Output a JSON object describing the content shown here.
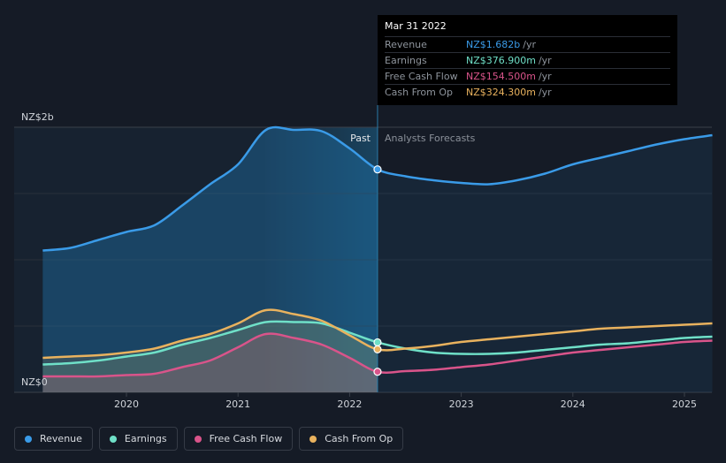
{
  "tooltip": {
    "date": "Mar 31 2022",
    "rows": [
      {
        "label": "Revenue",
        "value": "NZ$1.682b",
        "unit": "/yr",
        "color": "#3a9be8"
      },
      {
        "label": "Earnings",
        "value": "NZ$376.900m",
        "unit": "/yr",
        "color": "#6fe0c8"
      },
      {
        "label": "Free Cash Flow",
        "value": "NZ$154.500m",
        "unit": "/yr",
        "color": "#d9548a"
      },
      {
        "label": "Cash From Op",
        "value": "NZ$324.300m",
        "unit": "/yr",
        "color": "#e9b25e"
      }
    ]
  },
  "legend": [
    {
      "label": "Revenue",
      "color": "#3a9be8"
    },
    {
      "label": "Earnings",
      "color": "#6fe0c8"
    },
    {
      "label": "Free Cash Flow",
      "color": "#d9548a"
    },
    {
      "label": "Cash From Op",
      "color": "#e9b25e"
    }
  ],
  "chart_data": {
    "type": "line",
    "y_tick_labels": [
      "NZ$2b",
      "NZ$0"
    ],
    "ylim": [
      0,
      2.0
    ],
    "y_unit": "NZ$ billions",
    "x_tick_labels": [
      "2020",
      "2021",
      "2022",
      "2023",
      "2024",
      "2025"
    ],
    "x_ticks": [
      2020,
      2021,
      2022,
      2023,
      2024,
      2025
    ],
    "xlim": [
      2019.2,
      2025.25
    ],
    "divider_x": 2022.25,
    "past_label": "Past",
    "forecast_label": "Analysts Forecasts",
    "series": [
      {
        "name": "Revenue",
        "color": "#3a9be8",
        "points": [
          [
            2019.25,
            1.07
          ],
          [
            2019.5,
            1.09
          ],
          [
            2019.75,
            1.15
          ],
          [
            2020.0,
            1.21
          ],
          [
            2020.25,
            1.26
          ],
          [
            2020.5,
            1.41
          ],
          [
            2020.75,
            1.57
          ],
          [
            2021.0,
            1.72
          ],
          [
            2021.25,
            1.98
          ],
          [
            2021.5,
            1.98
          ],
          [
            2021.75,
            1.97
          ],
          [
            2022.0,
            1.84
          ],
          [
            2022.25,
            1.682
          ],
          [
            2022.5,
            1.63
          ],
          [
            2022.75,
            1.6
          ],
          [
            2023.0,
            1.58
          ],
          [
            2023.25,
            1.57
          ],
          [
            2023.5,
            1.6
          ],
          [
            2023.75,
            1.65
          ],
          [
            2024.0,
            1.72
          ],
          [
            2024.25,
            1.77
          ],
          [
            2024.5,
            1.82
          ],
          [
            2024.75,
            1.87
          ],
          [
            2025.0,
            1.91
          ],
          [
            2025.25,
            1.94
          ]
        ]
      },
      {
        "name": "Earnings",
        "color": "#6fe0c8",
        "points": [
          [
            2019.25,
            0.21
          ],
          [
            2019.5,
            0.22
          ],
          [
            2019.75,
            0.24
          ],
          [
            2020.0,
            0.27
          ],
          [
            2020.25,
            0.3
          ],
          [
            2020.5,
            0.36
          ],
          [
            2020.75,
            0.41
          ],
          [
            2021.0,
            0.47
          ],
          [
            2021.25,
            0.53
          ],
          [
            2021.5,
            0.53
          ],
          [
            2021.75,
            0.52
          ],
          [
            2022.0,
            0.45
          ],
          [
            2022.25,
            0.377
          ],
          [
            2022.5,
            0.33
          ],
          [
            2022.75,
            0.3
          ],
          [
            2023.0,
            0.29
          ],
          [
            2023.25,
            0.29
          ],
          [
            2023.5,
            0.3
          ],
          [
            2023.75,
            0.32
          ],
          [
            2024.0,
            0.34
          ],
          [
            2024.25,
            0.36
          ],
          [
            2024.5,
            0.37
          ],
          [
            2024.75,
            0.39
          ],
          [
            2025.0,
            0.41
          ],
          [
            2025.25,
            0.42
          ]
        ]
      },
      {
        "name": "Free Cash Flow",
        "color": "#d9548a",
        "points": [
          [
            2019.25,
            0.12
          ],
          [
            2019.5,
            0.12
          ],
          [
            2019.75,
            0.12
          ],
          [
            2020.0,
            0.13
          ],
          [
            2020.25,
            0.14
          ],
          [
            2020.5,
            0.19
          ],
          [
            2020.75,
            0.24
          ],
          [
            2021.0,
            0.34
          ],
          [
            2021.25,
            0.44
          ],
          [
            2021.5,
            0.41
          ],
          [
            2021.75,
            0.36
          ],
          [
            2022.0,
            0.26
          ],
          [
            2022.25,
            0.155
          ],
          [
            2022.5,
            0.16
          ],
          [
            2022.75,
            0.17
          ],
          [
            2023.0,
            0.19
          ],
          [
            2023.25,
            0.21
          ],
          [
            2023.5,
            0.24
          ],
          [
            2023.75,
            0.27
          ],
          [
            2024.0,
            0.3
          ],
          [
            2024.25,
            0.32
          ],
          [
            2024.5,
            0.34
          ],
          [
            2024.75,
            0.36
          ],
          [
            2025.0,
            0.38
          ],
          [
            2025.25,
            0.39
          ]
        ]
      },
      {
        "name": "Cash From Op",
        "color": "#e9b25e",
        "points": [
          [
            2019.25,
            0.26
          ],
          [
            2019.5,
            0.27
          ],
          [
            2019.75,
            0.28
          ],
          [
            2020.0,
            0.3
          ],
          [
            2020.25,
            0.33
          ],
          [
            2020.5,
            0.39
          ],
          [
            2020.75,
            0.44
          ],
          [
            2021.0,
            0.52
          ],
          [
            2021.25,
            0.62
          ],
          [
            2021.5,
            0.59
          ],
          [
            2021.75,
            0.54
          ],
          [
            2022.0,
            0.43
          ],
          [
            2022.25,
            0.324
          ],
          [
            2022.5,
            0.33
          ],
          [
            2022.75,
            0.35
          ],
          [
            2023.0,
            0.38
          ],
          [
            2023.25,
            0.4
          ],
          [
            2023.5,
            0.42
          ],
          [
            2023.75,
            0.44
          ],
          [
            2024.0,
            0.46
          ],
          [
            2024.25,
            0.48
          ],
          [
            2024.5,
            0.49
          ],
          [
            2024.75,
            0.5
          ],
          [
            2025.0,
            0.51
          ],
          [
            2025.25,
            0.52
          ]
        ]
      }
    ]
  }
}
